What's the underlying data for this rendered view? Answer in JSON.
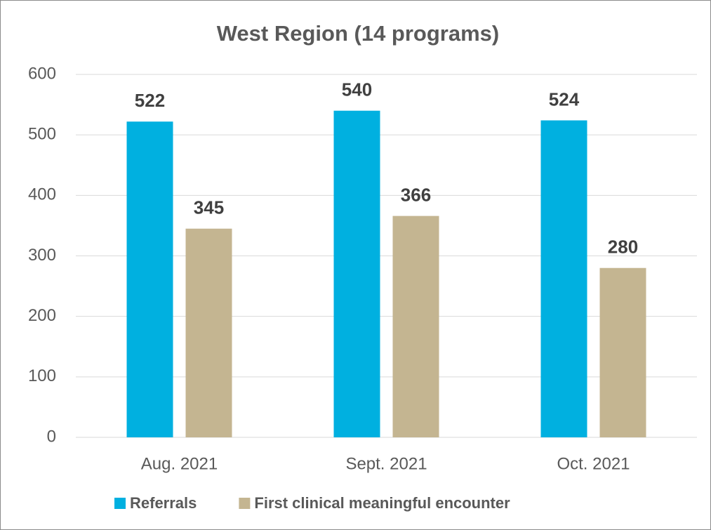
{
  "chart_data": {
    "type": "bar",
    "title": "West Region (14 programs)",
    "categories": [
      "Aug. 2021",
      "Sept. 2021",
      "Oct. 2021"
    ],
    "series": [
      {
        "name": "Referrals",
        "color": "#00b0e0",
        "values": [
          522,
          540,
          524
        ]
      },
      {
        "name": "First clinical meaningful encounter",
        "color": "#c4b591",
        "values": [
          345,
          366,
          280
        ]
      }
    ],
    "ylim": [
      0,
      600
    ],
    "yticks": [
      0,
      100,
      200,
      300,
      400,
      500,
      600
    ],
    "grid": true,
    "legend": "bottom",
    "data_labels": true
  }
}
